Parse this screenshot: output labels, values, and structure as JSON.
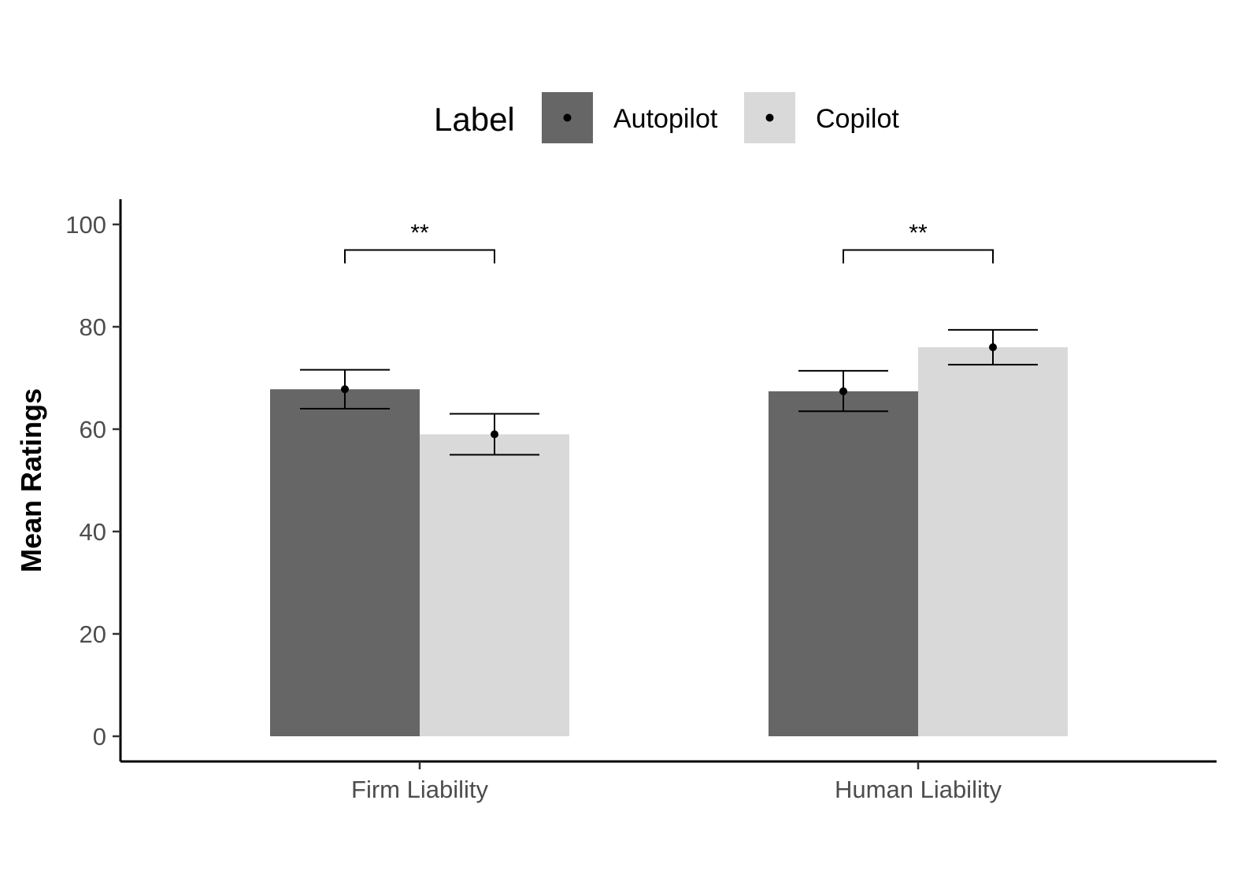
{
  "chart_data": {
    "type": "bar",
    "title": "",
    "xlabel": "",
    "ylabel": "Mean Ratings",
    "ylim": [
      -5,
      105
    ],
    "yticks": [
      0,
      20,
      40,
      60,
      80,
      100
    ],
    "grid": false,
    "legend": {
      "title": "Label",
      "placement": "top"
    },
    "categories": [
      "Firm Liability",
      "Human Liability"
    ],
    "series": [
      {
        "name": "Autopilot",
        "color": "#666666",
        "values": [
          67.8,
          67.4
        ],
        "error_low": [
          64.0,
          63.5
        ],
        "error_high": [
          71.6,
          71.4
        ]
      },
      {
        "name": "Copilot",
        "color": "#d9d9d9",
        "values": [
          59.0,
          76.0
        ],
        "error_low": [
          55.0,
          72.6
        ],
        "error_high": [
          63.0,
          79.4
        ]
      }
    ],
    "significance": [
      {
        "category": "Firm Liability",
        "label": "**",
        "bracket_y": 95
      },
      {
        "category": "Human Liability",
        "label": "**",
        "bracket_y": 95
      }
    ]
  }
}
